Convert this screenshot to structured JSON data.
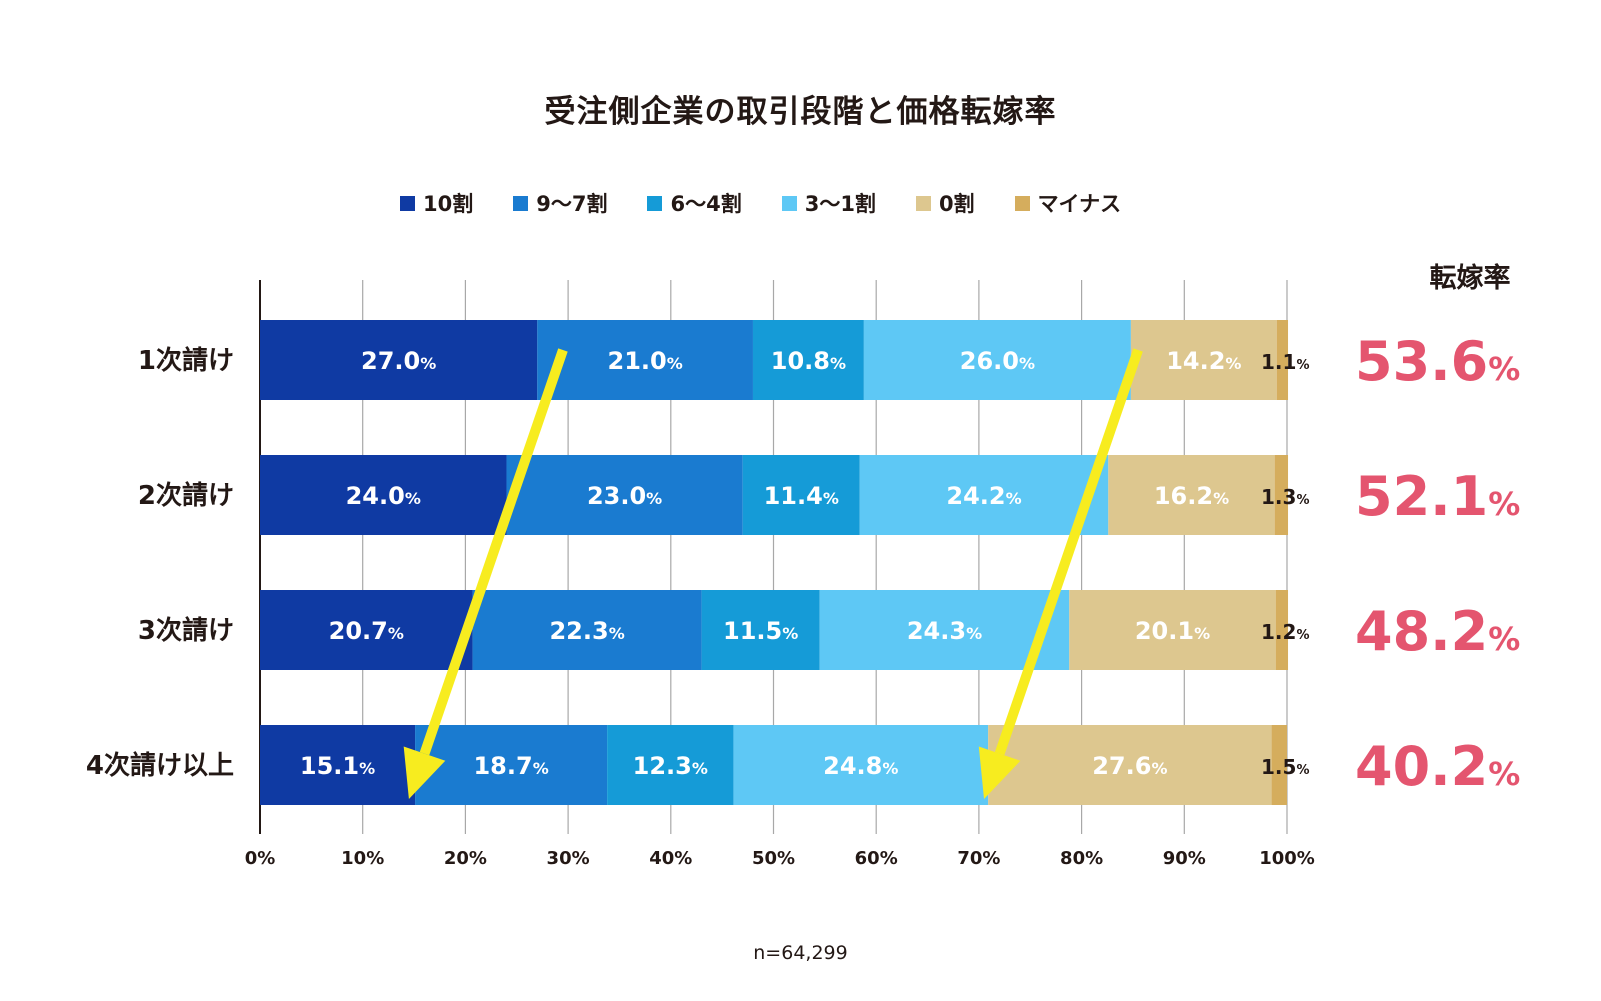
{
  "chart_data": {
    "type": "bar",
    "orientation": "horizontal",
    "stacked": true,
    "title": "受注側企業の取引段階と価格転嫁率",
    "categories": [
      "1次請け",
      "2次請け",
      "3次請け",
      "4次請け以上"
    ],
    "series": [
      {
        "name": "10割",
        "color": "#0f3aa3",
        "values": [
          27.0,
          24.0,
          20.7,
          15.1
        ]
      },
      {
        "name": "9〜7割",
        "color": "#1a7bd0",
        "values": [
          21.0,
          23.0,
          22.3,
          18.7
        ]
      },
      {
        "name": "6〜4割",
        "color": "#159bd7",
        "values": [
          10.8,
          11.4,
          11.5,
          12.3
        ]
      },
      {
        "name": "3〜1割",
        "color": "#5ec8f5",
        "values": [
          26.0,
          24.2,
          24.3,
          24.8
        ]
      },
      {
        "name": "0割",
        "color": "#ddc78f",
        "values": [
          14.2,
          16.2,
          20.1,
          27.6
        ]
      },
      {
        "name": "マイナス",
        "color": "#d5ad5d",
        "values": [
          1.1,
          1.3,
          1.2,
          1.5
        ]
      }
    ],
    "value_labels": [
      [
        "27.0",
        "21.0",
        "10.8",
        "26.0",
        "14.2",
        "1.1"
      ],
      [
        "24.0",
        "23.0",
        "11.4",
        "24.2",
        "16.2",
        "1.3"
      ],
      [
        "20.7",
        "22.3",
        "11.5",
        "24.3",
        "20.1",
        "1.2"
      ],
      [
        "15.1",
        "18.7",
        "12.3",
        "24.8",
        "27.6",
        "1.5"
      ]
    ],
    "value_unit": "%",
    "xlim": [
      0,
      100
    ],
    "x_ticks": [
      "0%",
      "10%",
      "20%",
      "30%",
      "40%",
      "50%",
      "60%",
      "70%",
      "80%",
      "90%",
      "100%"
    ],
    "grid": true,
    "legend_position": "top",
    "pass_through_rate_header": "転嫁率",
    "pass_through_rates": [
      "53.6",
      "52.1",
      "48.2",
      "40.2"
    ],
    "rate_color": "#e4556f",
    "annotations": {
      "arrows": [
        {
          "from": {
            "x": 29.5,
            "category": "1次請け"
          },
          "to": {
            "x": 14.5,
            "category": "4次請け以上"
          }
        },
        {
          "from": {
            "x": 85.5,
            "category": "1次請け"
          },
          "to": {
            "x": 70.5,
            "category": "4次請け以上"
          }
        }
      ],
      "arrow_color": "#f7ec1f"
    },
    "sample_size": "n=64,299"
  }
}
